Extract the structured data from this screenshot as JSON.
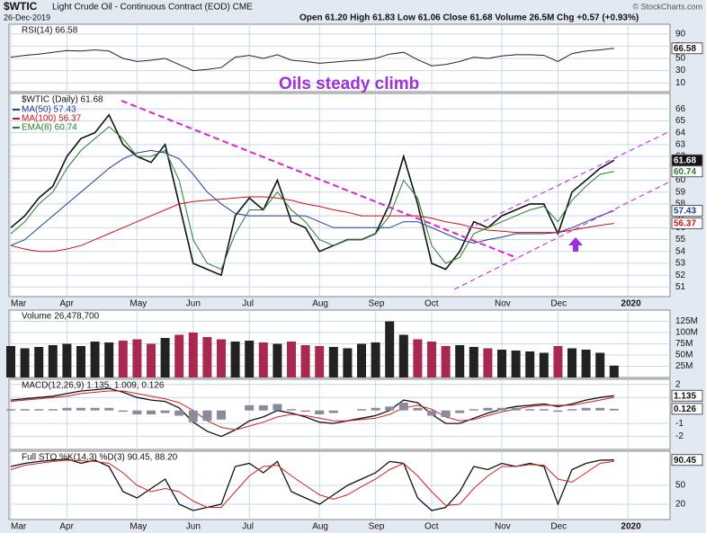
{
  "header": {
    "symbol": "$WTIC",
    "title": "Light Crude Oil - Continuous Contract (EOD) CME",
    "date": "26-Dec-2019",
    "quote": "Open 61.20   High 61.83   Low 61.06   Close 61.68   Volume 26.5M   Chg +0.57 (+0.93%)",
    "source": "© StockCharts.com"
  },
  "chart_data": [
    {
      "type": "line",
      "title": "RSI(14) 66.58",
      "ylim": [
        0,
        100
      ],
      "yticks": [
        90,
        70,
        50,
        30,
        10
      ],
      "grid": true,
      "series": [
        {
          "name": "RSI(14)",
          "color": "#222222",
          "values": [
            52,
            55,
            57,
            60,
            63,
            62,
            64,
            62,
            50,
            45,
            47,
            50,
            40,
            30,
            32,
            35,
            52,
            55,
            50,
            56,
            47,
            45,
            42,
            44,
            46,
            47,
            50,
            57,
            60,
            48,
            38,
            40,
            45,
            52,
            50,
            54,
            56,
            56,
            55,
            45,
            58,
            62,
            64,
            66.58,
            null
          ]
        }
      ]
    },
    {
      "type": "line",
      "title": "$WTIC (Daily) 61.68",
      "annotation": "Oils steady climb",
      "categories": [
        "Mar",
        null,
        null,
        null,
        "Apr",
        null,
        null,
        null,
        null,
        "May",
        null,
        null,
        null,
        "Jun",
        null,
        null,
        null,
        "Jul",
        null,
        null,
        null,
        null,
        "Aug",
        null,
        null,
        null,
        "Sep",
        null,
        null,
        null,
        "Oct",
        null,
        null,
        null,
        null,
        "Nov",
        null,
        null,
        null,
        "Dec",
        null,
        null,
        null,
        null,
        "2020"
      ],
      "ylim": [
        50.2,
        67.3
      ],
      "yticks": [
        51,
        52,
        53,
        54,
        55,
        56,
        57,
        58,
        59,
        60,
        61,
        62,
        63,
        64,
        65,
        66
      ],
      "grid": true,
      "series": [
        {
          "name": "$WTIC",
          "color": "#111111",
          "width": 1.6,
          "values": [
            56,
            57,
            58.5,
            59.5,
            62,
            63.5,
            64,
            65.5,
            63,
            62,
            61.5,
            63,
            58,
            53,
            52.5,
            52,
            57,
            58.5,
            57.5,
            60,
            56.5,
            56,
            54,
            54.5,
            55,
            55,
            55.5,
            58,
            62,
            58,
            53,
            52.5,
            54,
            56.5,
            56,
            57,
            57.5,
            58,
            58,
            55.5,
            59,
            60,
            61,
            61.68,
            null
          ]
        },
        {
          "name": "MA(50) 57.43",
          "color": "#1f3a93",
          "width": 1,
          "values": [
            54.5,
            55,
            56,
            57,
            58,
            59,
            60,
            61,
            61.8,
            62.3,
            62.5,
            62.3,
            61.8,
            60.5,
            59,
            58,
            57.2,
            57,
            57,
            57,
            57,
            57,
            56.5,
            56,
            56,
            56,
            56,
            56,
            56.5,
            56.5,
            56,
            55.5,
            55,
            54.7,
            55,
            55.2,
            55.5,
            55.5,
            55.5,
            55.6,
            56,
            56.5,
            57,
            57.43,
            null
          ]
        },
        {
          "name": "MA(100) 56.37",
          "color": "#cc1111",
          "width": 1,
          "values": [
            54.5,
            54.2,
            54,
            54,
            54.2,
            54.5,
            55,
            55.5,
            56,
            56.5,
            57,
            57.5,
            58,
            58.2,
            58.3,
            58.4,
            58.5,
            58.6,
            58.6,
            58.5,
            58.3,
            58,
            57.8,
            57.5,
            57.3,
            57,
            57,
            57,
            57,
            57,
            56.8,
            56.5,
            56.3,
            56,
            55.8,
            55.7,
            55.6,
            55.6,
            55.6,
            55.6,
            55.8,
            56,
            56.2,
            56.37,
            null
          ]
        },
        {
          "name": "EMA(8) 60.74",
          "color": "#2a7a2a",
          "width": 1,
          "values": [
            55.5,
            56.5,
            58,
            59,
            61,
            62.5,
            63.5,
            64.5,
            63.5,
            62,
            62,
            62.5,
            60,
            55,
            53,
            52.5,
            55.5,
            57.5,
            57.5,
            59,
            57.5,
            56.5,
            55,
            54.5,
            55,
            55,
            55.5,
            57,
            60,
            58.5,
            54.5,
            53,
            53.5,
            55.5,
            56,
            56.5,
            57,
            57.5,
            57.8,
            56.5,
            58.3,
            59.5,
            60.5,
            60.74,
            null
          ]
        }
      ]
    },
    {
      "type": "bar",
      "title": "Volume 26,478,700",
      "ylim": [
        0,
        150000000
      ],
      "grid": true,
      "up_color": "#222222",
      "down_color": "#a8284f",
      "yticks": [
        {
          "value": 125000000,
          "label": "125M"
        },
        {
          "value": 100000000,
          "label": "100M"
        },
        {
          "value": 75000000,
          "label": "75M"
        },
        {
          "value": 50000000,
          "label": "50M"
        },
        {
          "value": 25000000,
          "label": "25M"
        }
      ],
      "series": [
        {
          "name": "Volume",
          "values": [
            70000000,
            65000000,
            68000000,
            72000000,
            75000000,
            70000000,
            80000000,
            78000000,
            82000000,
            85000000,
            75000000,
            88000000,
            95000000,
            100000000,
            90000000,
            85000000,
            80000000,
            82000000,
            78000000,
            75000000,
            80000000,
            72000000,
            70000000,
            68000000,
            65000000,
            75000000,
            78000000,
            125000000,
            95000000,
            85000000,
            80000000,
            70000000,
            72000000,
            68000000,
            65000000,
            62000000,
            60000000,
            58000000,
            55000000,
            70000000,
            65000000,
            62000000,
            55000000,
            26478700,
            null
          ]
        }
      ]
    },
    {
      "type": "line",
      "title": "MACD(12,26,9) 1.135, 1.009, 0.126",
      "ylim": [
        -3,
        2.4
      ],
      "yticks": [
        2,
        1,
        -1,
        -2
      ],
      "grid": true,
      "series": [
        {
          "name": "MACD",
          "color": "#111111",
          "width": 1.3,
          "values": [
            0.8,
            0.9,
            1.0,
            1.1,
            1.3,
            1.5,
            1.6,
            1.7,
            1.4,
            1.0,
            0.8,
            0.7,
            0.2,
            -0.9,
            -1.6,
            -2.0,
            -1.5,
            -0.8,
            -0.5,
            0,
            -0.2,
            -0.5,
            -0.9,
            -1.0,
            -0.8,
            -0.6,
            -0.4,
            0,
            0.8,
            0.6,
            -0.3,
            -1.0,
            -1.0,
            -0.6,
            -0.2,
            0.1,
            0.3,
            0.4,
            0.5,
            0.3,
            0.5,
            0.8,
            1.0,
            1.135,
            null
          ]
        },
        {
          "name": "Signal",
          "color": "#cc2222",
          "width": 1,
          "values": [
            0.7,
            0.8,
            0.9,
            1.0,
            1.1,
            1.3,
            1.4,
            1.5,
            1.5,
            1.3,
            1.1,
            0.9,
            0.6,
            0,
            -0.8,
            -1.3,
            -1.5,
            -1.2,
            -0.9,
            -0.5,
            -0.3,
            -0.4,
            -0.6,
            -0.8,
            -0.8,
            -0.7,
            -0.6,
            -0.3,
            0.2,
            0.4,
            0.1,
            -0.5,
            -0.8,
            -0.7,
            -0.4,
            -0.1,
            0.1,
            0.3,
            0.4,
            0.4,
            0.4,
            0.6,
            0.8,
            1.009,
            null
          ]
        },
        {
          "name": "Histogram",
          "color": "#8a8a9a",
          "bars": true,
          "values": [
            0.1,
            0.1,
            0.1,
            0.1,
            0.2,
            0.2,
            0.2,
            0.2,
            -0.1,
            -0.3,
            -0.3,
            -0.2,
            -0.4,
            -0.9,
            -0.8,
            -0.7,
            0,
            0.4,
            0.4,
            0.5,
            0.1,
            -0.1,
            -0.3,
            -0.2,
            0,
            0.1,
            0.2,
            0.3,
            0.6,
            0.2,
            -0.4,
            -0.5,
            -0.2,
            0.1,
            0.2,
            0.2,
            0.2,
            0.1,
            0.1,
            -0.1,
            0.1,
            0.2,
            0.2,
            0.126,
            null
          ]
        }
      ]
    },
    {
      "type": "line",
      "title": "Full STO %K(14,3) %D(3) 90.45, 88.20",
      "ylim": [
        0,
        100
      ],
      "yticks": [
        50,
        20
      ],
      "grid": true,
      "categories": [
        "Mar",
        null,
        null,
        null,
        "Apr",
        null,
        null,
        null,
        null,
        "May",
        null,
        null,
        null,
        "Jun",
        null,
        null,
        null,
        "Jul",
        null,
        null,
        null,
        null,
        "Aug",
        null,
        null,
        null,
        "Sep",
        null,
        null,
        null,
        "Oct",
        null,
        null,
        null,
        null,
        "Nov",
        null,
        null,
        null,
        "Dec",
        null,
        null,
        null,
        null,
        "2020"
      ],
      "series": [
        {
          "name": "%K",
          "color": "#111111",
          "width": 1.3,
          "values": [
            80,
            85,
            88,
            90,
            92,
            85,
            90,
            80,
            40,
            30,
            45,
            60,
            20,
            10,
            15,
            20,
            80,
            85,
            70,
            88,
            40,
            30,
            20,
            35,
            50,
            60,
            70,
            88,
            85,
            30,
            10,
            15,
            40,
            80,
            75,
            85,
            80,
            85,
            80,
            20,
            75,
            85,
            90,
            90.45,
            null
          ]
        },
        {
          "name": "%D",
          "color": "#cc2222",
          "width": 1,
          "values": [
            75,
            82,
            85,
            88,
            90,
            89,
            88,
            85,
            70,
            50,
            40,
            45,
            40,
            25,
            15,
            15,
            40,
            65,
            80,
            82,
            65,
            50,
            35,
            28,
            35,
            48,
            60,
            75,
            85,
            65,
            40,
            18,
            20,
            45,
            65,
            80,
            80,
            83,
            82,
            60,
            55,
            70,
            85,
            88.2,
            null
          ]
        }
      ]
    }
  ]
}
